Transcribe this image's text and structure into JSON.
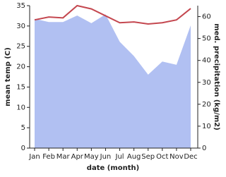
{
  "chart_data": {
    "type": "line-area",
    "xlabel": "date (month)",
    "ylabel": "mean temp (C)",
    "y2label": "med. precipitation (kg/m2)",
    "categories": [
      "Jan",
      "Feb",
      "Mar",
      "Apr",
      "May",
      "Jun",
      "Jul",
      "Aug",
      "Sep",
      "Oct",
      "Nov",
      "Dec"
    ],
    "series": [
      {
        "name": "mean temp",
        "color": "#c4474f",
        "kind": "line",
        "values": [
          31.5,
          32.2,
          32,
          35,
          34.2,
          32.5,
          30.8,
          31,
          30.5,
          30.8,
          31.5,
          34.3
        ]
      },
      {
        "name": "med. precipitation",
        "color": "#b1c0f2",
        "kind": "area",
        "axis": "y2",
        "values": [
          59,
          57.5,
          57.5,
          60.5,
          57,
          61,
          48.5,
          42,
          33.5,
          39.5,
          38,
          56
        ]
      }
    ],
    "ylim": [
      0,
      35
    ],
    "yticks": [
      0,
      5,
      10,
      15,
      20,
      25,
      30,
      35
    ],
    "y2lim": [
      0,
      65
    ],
    "y2ticks": [
      0,
      10,
      20,
      30,
      40,
      50,
      60
    ]
  }
}
